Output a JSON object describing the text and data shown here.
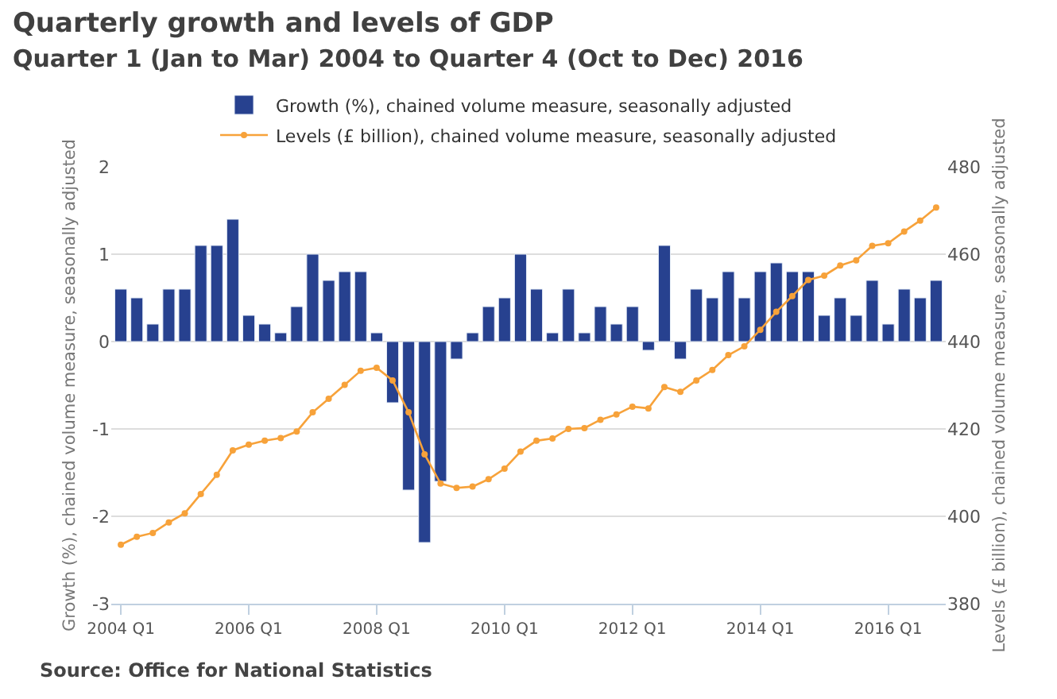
{
  "chart_data": {
    "type": "bar",
    "title": "Quarterly growth and levels of GDP",
    "subtitle": "Quarter 1 (Jan to Mar) 2004 to Quarter 4 (Oct to Dec) 2016",
    "ylabel": "Growth (%), chained volume measure, seasonally adjusted",
    "y2label": "Levels (£ billion), chained volume measure, seasonally adjusted",
    "categories": [
      "2004 Q1",
      null,
      null,
      null,
      null,
      null,
      null,
      null,
      "2006 Q1",
      null,
      null,
      null,
      null,
      null,
      null,
      null,
      "2008 Q1",
      null,
      null,
      null,
      null,
      null,
      null,
      null,
      "2010 Q1",
      null,
      null,
      null,
      null,
      null,
      null,
      null,
      "2012 Q1",
      null,
      null,
      null,
      null,
      null,
      null,
      null,
      "2014 Q1",
      null,
      null,
      null,
      null,
      null,
      null,
      null,
      "2016 Q1",
      null,
      null,
      null
    ],
    "series": [
      {
        "name": "Growth (%), chained volume measure, seasonally adjusted",
        "color": "#27418f",
        "values": [
          0.6,
          0.5,
          0.2,
          0.6,
          0.6,
          1.1,
          1.1,
          1.4,
          0.3,
          0.2,
          0.1,
          0.4,
          1.0,
          0.7,
          0.8,
          0.8,
          0.1,
          -0.7,
          -1.7,
          -2.3,
          -1.6,
          -0.2,
          0.1,
          0.4,
          0.5,
          1.0,
          0.6,
          0.1,
          0.6,
          0.1,
          0.4,
          0.2,
          0.4,
          -0.1,
          1.1,
          -0.2,
          0.6,
          0.5,
          0.8,
          0.5,
          0.8,
          0.9,
          0.8,
          0.8,
          0.3,
          0.5,
          0.3,
          0.7,
          0.2,
          0.6,
          0.5,
          0.7
        ]
      },
      {
        "name": "Levels (£ billion), chained volume measure, seasonally adjusted",
        "type": "line",
        "axis": "y2",
        "color": "#f7a23a",
        "marker": "circle",
        "line_style": "solid",
        "values": [
          393.5,
          395.3,
          396.2,
          398.6,
          400.7,
          405.1,
          409.5,
          415.1,
          416.4,
          417.3,
          417.9,
          419.4,
          423.8,
          426.9,
          430.1,
          433.3,
          434.0,
          431.1,
          423.8,
          414.2,
          407.5,
          406.5,
          406.8,
          408.5,
          410.9,
          414.8,
          417.3,
          417.8,
          420.0,
          420.2,
          422.1,
          423.3,
          425.1,
          424.7,
          429.6,
          428.5,
          431.1,
          433.5,
          436.9,
          438.9,
          442.7,
          446.8,
          450.4,
          454.1,
          455.1,
          457.4,
          458.6,
          461.9,
          462.5,
          465.2,
          467.7,
          470.7
        ]
      }
    ],
    "ylim": [
      -3,
      2
    ],
    "yticks": [
      -3,
      -2,
      -1,
      0,
      1,
      2
    ],
    "y2lim": [
      380,
      480
    ],
    "y2ticks": [
      380,
      400,
      420,
      440,
      460,
      480
    ],
    "grid": "y",
    "legend": "top",
    "annotations": [
      "Source: Office for National Statistics"
    ]
  }
}
